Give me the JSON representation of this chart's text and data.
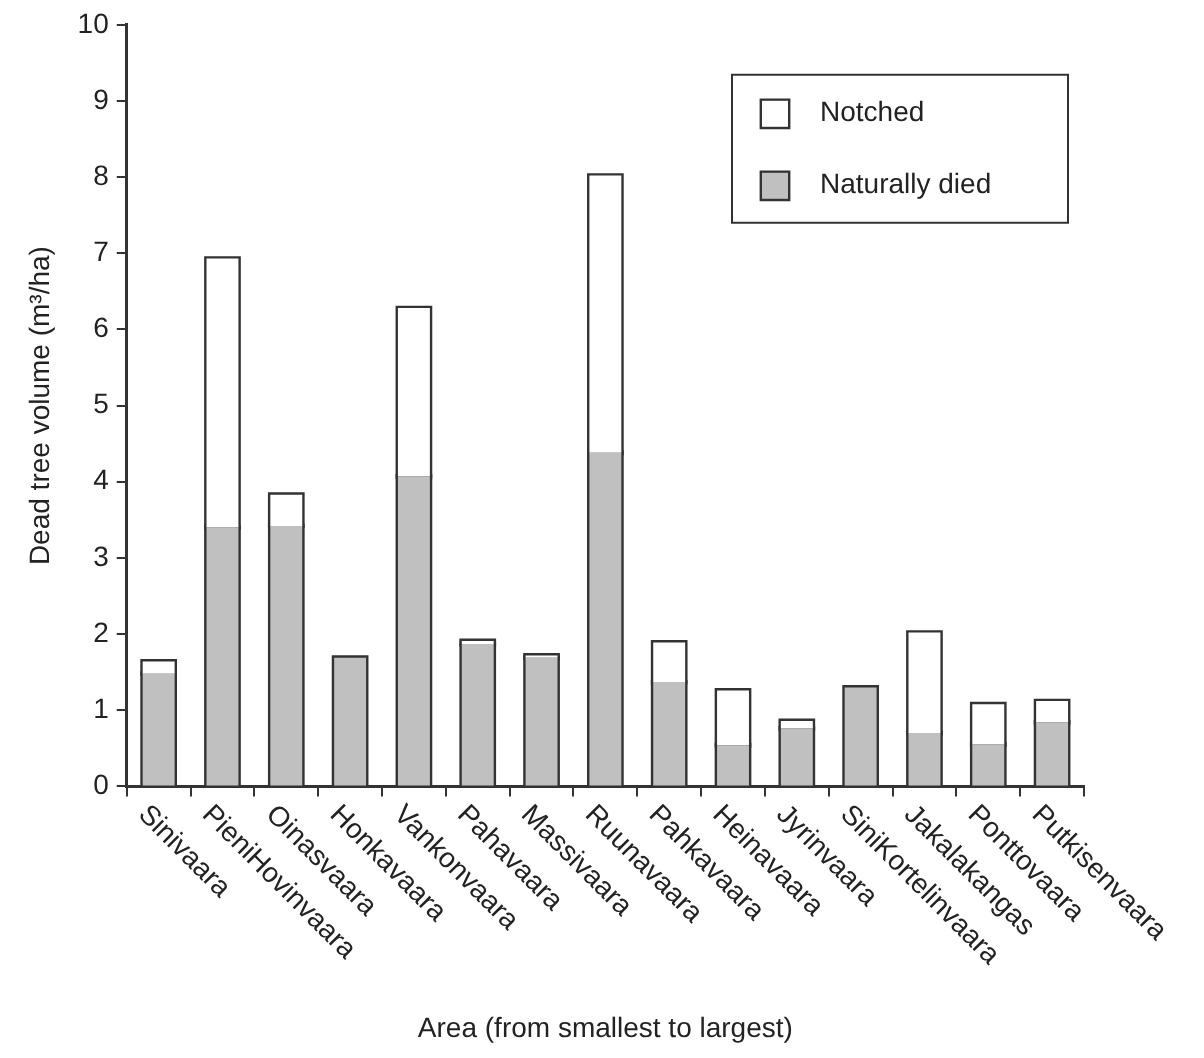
{
  "chart_data": {
    "type": "bar",
    "stacked": true,
    "xlabel": "Area (from smallest to largest)",
    "ylabel": "Dead tree volume (m³/ha)",
    "categories": [
      "Sinivaara",
      "PieniHovinvaara",
      "Oinasvaara",
      "Honkavaara",
      "Vankonvaara",
      "Pahavaara",
      "Massivaara",
      "Ruunavaara",
      "Pahkavaara",
      "Heinavaara",
      "Jyrinvaara",
      "SiniKortelinvaara",
      "Jakalakangas",
      "Ponttovaara",
      "Putkisenvaara"
    ],
    "series": [
      {
        "name": "Naturally died",
        "color": "#c0c0c0",
        "values": [
          1.48,
          3.4,
          3.42,
          1.69,
          4.07,
          1.87,
          1.69,
          4.38,
          1.37,
          0.54,
          0.76,
          1.3,
          0.7,
          0.55,
          0.84
        ]
      },
      {
        "name": "Notched",
        "color": "#ffffff",
        "values": [
          0.16,
          3.53,
          0.41,
          0,
          2.21,
          0.04,
          0.03,
          3.64,
          0.52,
          0.72,
          0.1,
          0,
          1.32,
          0.53,
          0.28
        ]
      }
    ],
    "ylim": [
      0,
      10
    ],
    "yticks": [
      0,
      1,
      2,
      3,
      4,
      5,
      6,
      7,
      8,
      9,
      10
    ],
    "grid": false,
    "legend": "top right"
  }
}
